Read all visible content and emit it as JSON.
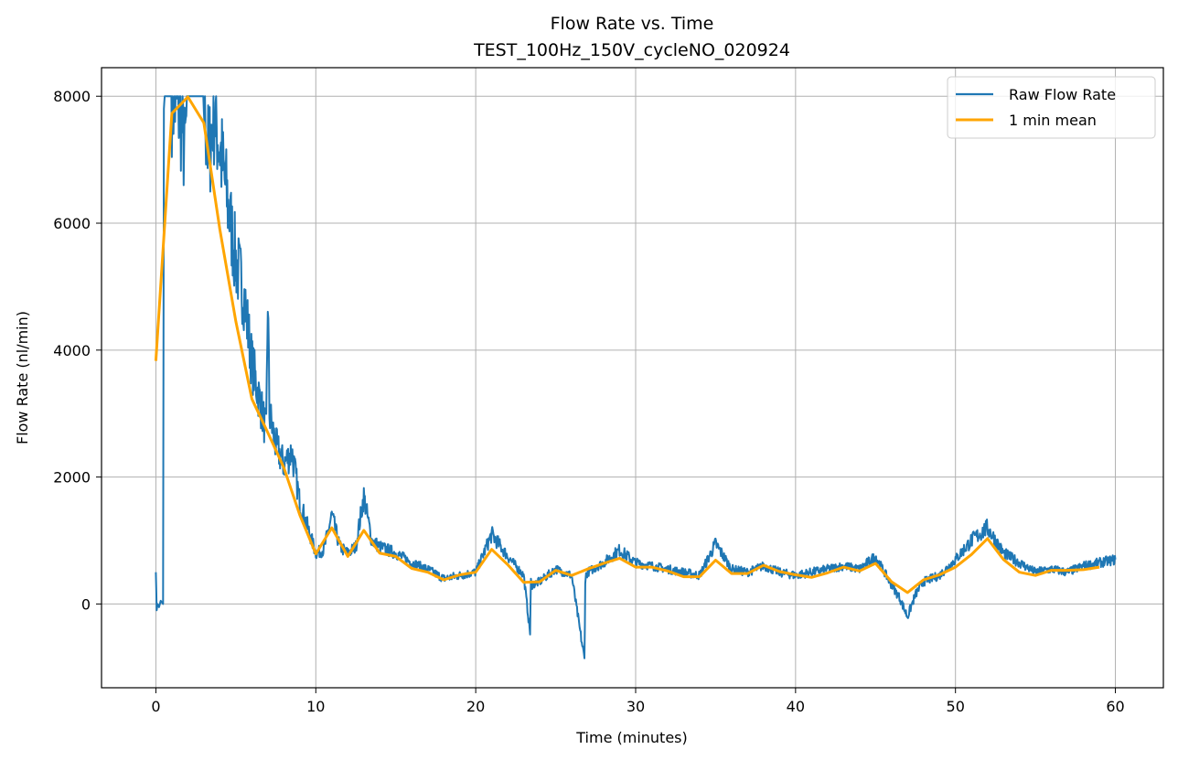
{
  "chart_data": {
    "type": "line",
    "title": "Flow Rate vs. Time",
    "subtitle": "TEST_100Hz_150V_cycleNO_020924",
    "xlabel": "Time (minutes)",
    "ylabel": "Flow Rate (nl/min)",
    "xlim": [
      -3.4,
      63.0
    ],
    "ylim": [
      -1320,
      8450
    ],
    "xticks": [
      0,
      10,
      20,
      30,
      40,
      50,
      60
    ],
    "yticks": [
      0,
      2000,
      4000,
      6000,
      8000
    ],
    "grid": true,
    "legend_position": "top-right",
    "colors": {
      "raw": "#1f77b4",
      "mean": "#ffa500",
      "grid": "#b0b0b0"
    },
    "series": [
      {
        "name": "Raw Flow Rate",
        "style": "thin-noisy-line",
        "x": [
          0,
          0.05,
          0.1,
          0.2,
          0.3,
          0.45,
          0.5,
          0.55,
          0.7,
          1.0,
          1.5,
          1.8,
          2.0,
          2.5,
          3.0,
          3.3,
          3.6,
          4.0,
          4.5,
          5.0,
          5.5,
          6.0,
          6.5,
          6.9,
          7.0,
          7.1,
          7.5,
          8.0,
          8.5,
          9.0,
          9.5,
          10.0,
          10.5,
          11.0,
          11.5,
          12.0,
          12.5,
          13.0,
          13.5,
          14.0,
          15.0,
          16.0,
          17.0,
          18.0,
          19.0,
          20.0,
          21.0,
          22.0,
          23.0,
          23.4,
          23.45,
          23.5,
          24.0,
          25.0,
          26.0,
          26.8,
          26.85,
          26.9,
          27.0,
          28.0,
          29.0,
          30.0,
          31.0,
          32.0,
          33.0,
          34.0,
          35.0,
          36.0,
          37.0,
          38.0,
          39.0,
          40.0,
          41.0,
          42.0,
          43.0,
          44.0,
          45.0,
          46.0,
          46.5,
          47.0,
          47.5,
          48.0,
          49.0,
          50.0,
          51.0,
          52.0,
          53.0,
          54.0,
          55.0,
          56.0,
          57.0,
          58.0,
          59.0,
          60.0
        ],
        "values": [
          500,
          -100,
          0,
          -50,
          50,
          0,
          7800,
          8000,
          8000,
          8000,
          7800,
          7100,
          8000,
          8000,
          8000,
          7000,
          7800,
          7200,
          6300,
          5400,
          4900,
          3800,
          3200,
          2700,
          4900,
          3000,
          2500,
          2200,
          2400,
          1600,
          1200,
          800,
          850,
          1400,
          900,
          800,
          900,
          1700,
          1000,
          900,
          800,
          650,
          550,
          400,
          450,
          500,
          1100,
          750,
          450,
          -450,
          350,
          300,
          350,
          550,
          450,
          -880,
          350,
          450,
          500,
          650,
          850,
          650,
          600,
          550,
          500,
          450,
          950,
          550,
          500,
          600,
          500,
          450,
          500,
          550,
          600,
          550,
          750,
          300,
          100,
          -200,
          150,
          350,
          450,
          700,
          1000,
          1200,
          800,
          650,
          500,
          550,
          500,
          600,
          650,
          700
        ]
      },
      {
        "name": "1 min mean",
        "style": "thick-line",
        "x": [
          0,
          1,
          2,
          3,
          4,
          5,
          6,
          7,
          8,
          9,
          10,
          11,
          12,
          13,
          14,
          15,
          16,
          17,
          18,
          19,
          20,
          21,
          22,
          23,
          24,
          25,
          26,
          27,
          28,
          29,
          30,
          31,
          32,
          33,
          34,
          35,
          36,
          37,
          38,
          39,
          40,
          41,
          42,
          43,
          44,
          45,
          46,
          47,
          48,
          49,
          50,
          51,
          52,
          53,
          54,
          55,
          56,
          57,
          58,
          59
        ],
        "values": [
          3830,
          7730,
          7990,
          7580,
          5900,
          4450,
          3230,
          2700,
          2150,
          1400,
          790,
          1200,
          750,
          1160,
          800,
          750,
          560,
          500,
          380,
          460,
          500,
          860,
          620,
          340,
          350,
          530,
          450,
          550,
          640,
          720,
          580,
          580,
          520,
          430,
          430,
          690,
          480,
          480,
          610,
          510,
          460,
          420,
          490,
          580,
          520,
          640,
          350,
          180,
          380,
          460,
          580,
          780,
          1030,
          700,
          500,
          450,
          530,
          530,
          540,
          580
        ]
      }
    ]
  }
}
